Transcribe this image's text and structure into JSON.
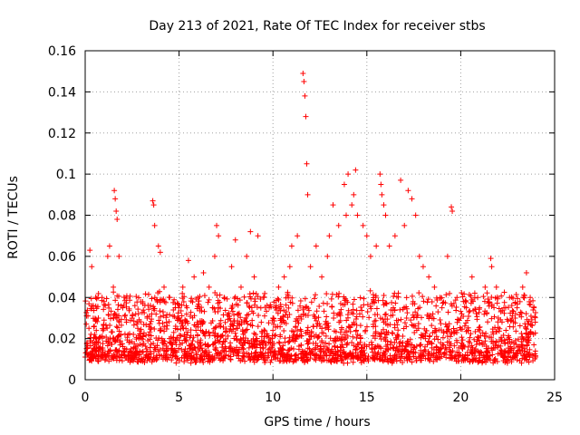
{
  "chart_data": {
    "type": "scatter",
    "title": "Day 213 of 2021, Rate Of TEC Index for receiver stbs",
    "xlabel": "GPS time / hours",
    "ylabel": "ROTI / TECUs",
    "xlim": [
      0,
      25
    ],
    "ylim": [
      0,
      0.16
    ],
    "xticks": [
      0,
      5,
      10,
      15,
      20,
      25
    ],
    "xtick_labels": [
      "0",
      "5",
      "10",
      "15",
      "20",
      "25"
    ],
    "yticks": [
      0,
      0.02,
      0.04,
      0.06,
      0.08,
      0.1,
      0.12,
      0.14,
      0.16
    ],
    "ytick_labels": [
      "0",
      "0.02",
      "0.04",
      "0.06",
      "0.08",
      "0.1",
      "0.12",
      "0.14",
      "0.16"
    ],
    "grid": true,
    "marker": "+",
    "color": "#ff0000",
    "series": [
      {
        "name": "ROTI",
        "x": [
          0.1,
          0.2,
          0.25,
          0.35,
          0.5,
          0.7,
          0.9,
          1.0,
          1.2,
          1.3,
          1.5,
          1.55,
          1.6,
          1.65,
          1.7,
          1.8,
          2.0,
          2.2,
          2.5,
          2.8,
          3.0,
          3.3,
          3.6,
          3.65,
          3.7,
          3.9,
          4.0,
          4.2,
          4.5,
          4.8,
          5.0,
          5.2,
          5.5,
          5.8,
          6.0,
          6.3,
          6.6,
          6.9,
          7.0,
          7.1,
          7.4,
          7.8,
          8.0,
          8.3,
          8.6,
          8.8,
          9.0,
          9.2,
          9.5,
          9.8,
          10.0,
          10.3,
          10.6,
          10.9,
          11.0,
          11.3,
          11.6,
          11.65,
          11.7,
          11.75,
          11.8,
          11.85,
          12.0,
          12.3,
          12.6,
          12.9,
          13.0,
          13.2,
          13.5,
          13.8,
          13.9,
          14.0,
          14.2,
          14.3,
          14.4,
          14.5,
          14.8,
          15.0,
          15.2,
          15.5,
          15.7,
          15.75,
          15.8,
          15.9,
          16.0,
          16.2,
          16.5,
          16.8,
          17.0,
          17.2,
          17.4,
          17.6,
          17.8,
          18.0,
          18.3,
          18.6,
          18.9,
          19.0,
          19.3,
          19.5,
          19.55,
          19.8,
          20.0,
          20.3,
          20.6,
          20.9,
          21.0,
          21.3,
          21.6,
          21.65,
          21.9,
          22.0,
          22.3,
          22.6,
          22.9,
          23.0,
          23.3,
          23.5,
          23.7,
          23.9,
          0.3,
          0.8,
          1.4,
          2.1,
          2.7,
          3.4,
          4.1,
          4.7,
          5.4,
          6.1,
          6.8,
          7.5,
          8.2,
          8.9,
          9.6,
          10.4,
          11.1,
          11.9,
          12.5,
          13.3,
          14.1,
          14.7,
          15.4,
          16.1,
          16.7,
          17.3,
          18.1,
          18.7,
          19.4,
          20.1,
          20.7,
          21.4,
          22.1,
          22.7,
          23.4,
          0.6,
          1.9,
          5.9,
          9.4,
          13.6
        ],
        "y": [
          0.018,
          0.025,
          0.063,
          0.055,
          0.022,
          0.03,
          0.04,
          0.038,
          0.06,
          0.065,
          0.045,
          0.092,
          0.088,
          0.082,
          0.078,
          0.06,
          0.035,
          0.028,
          0.03,
          0.025,
          0.02,
          0.03,
          0.087,
          0.085,
          0.075,
          0.065,
          0.062,
          0.045,
          0.04,
          0.035,
          0.03,
          0.045,
          0.058,
          0.05,
          0.04,
          0.052,
          0.045,
          0.06,
          0.075,
          0.07,
          0.04,
          0.055,
          0.068,
          0.045,
          0.06,
          0.072,
          0.05,
          0.07,
          0.04,
          0.035,
          0.03,
          0.045,
          0.05,
          0.055,
          0.065,
          0.07,
          0.149,
          0.145,
          0.138,
          0.128,
          0.105,
          0.09,
          0.055,
          0.065,
          0.05,
          0.06,
          0.07,
          0.085,
          0.075,
          0.095,
          0.08,
          0.1,
          0.085,
          0.09,
          0.102,
          0.08,
          0.075,
          0.07,
          0.06,
          0.065,
          0.1,
          0.095,
          0.09,
          0.085,
          0.08,
          0.065,
          0.07,
          0.097,
          0.075,
          0.092,
          0.088,
          0.08,
          0.06,
          0.055,
          0.05,
          0.045,
          0.04,
          0.035,
          0.06,
          0.084,
          0.082,
          0.04,
          0.03,
          0.035,
          0.05,
          0.04,
          0.035,
          0.045,
          0.059,
          0.055,
          0.045,
          0.03,
          0.035,
          0.04,
          0.03,
          0.035,
          0.045,
          0.052,
          0.04,
          0.035,
          0.012,
          0.015,
          0.01,
          0.014,
          0.016,
          0.012,
          0.018,
          0.013,
          0.011,
          0.015,
          0.017,
          0.012,
          0.014,
          0.016,
          0.013,
          0.012,
          0.015,
          0.018,
          0.014,
          0.016,
          0.013,
          0.012,
          0.015,
          0.017,
          0.014,
          0.011,
          0.016,
          0.013,
          0.012,
          0.015,
          0.01,
          0.014,
          0.013,
          0.015,
          0.011,
          0.02,
          0.022,
          0.024,
          0.021,
          0.023
        ]
      }
    ]
  }
}
